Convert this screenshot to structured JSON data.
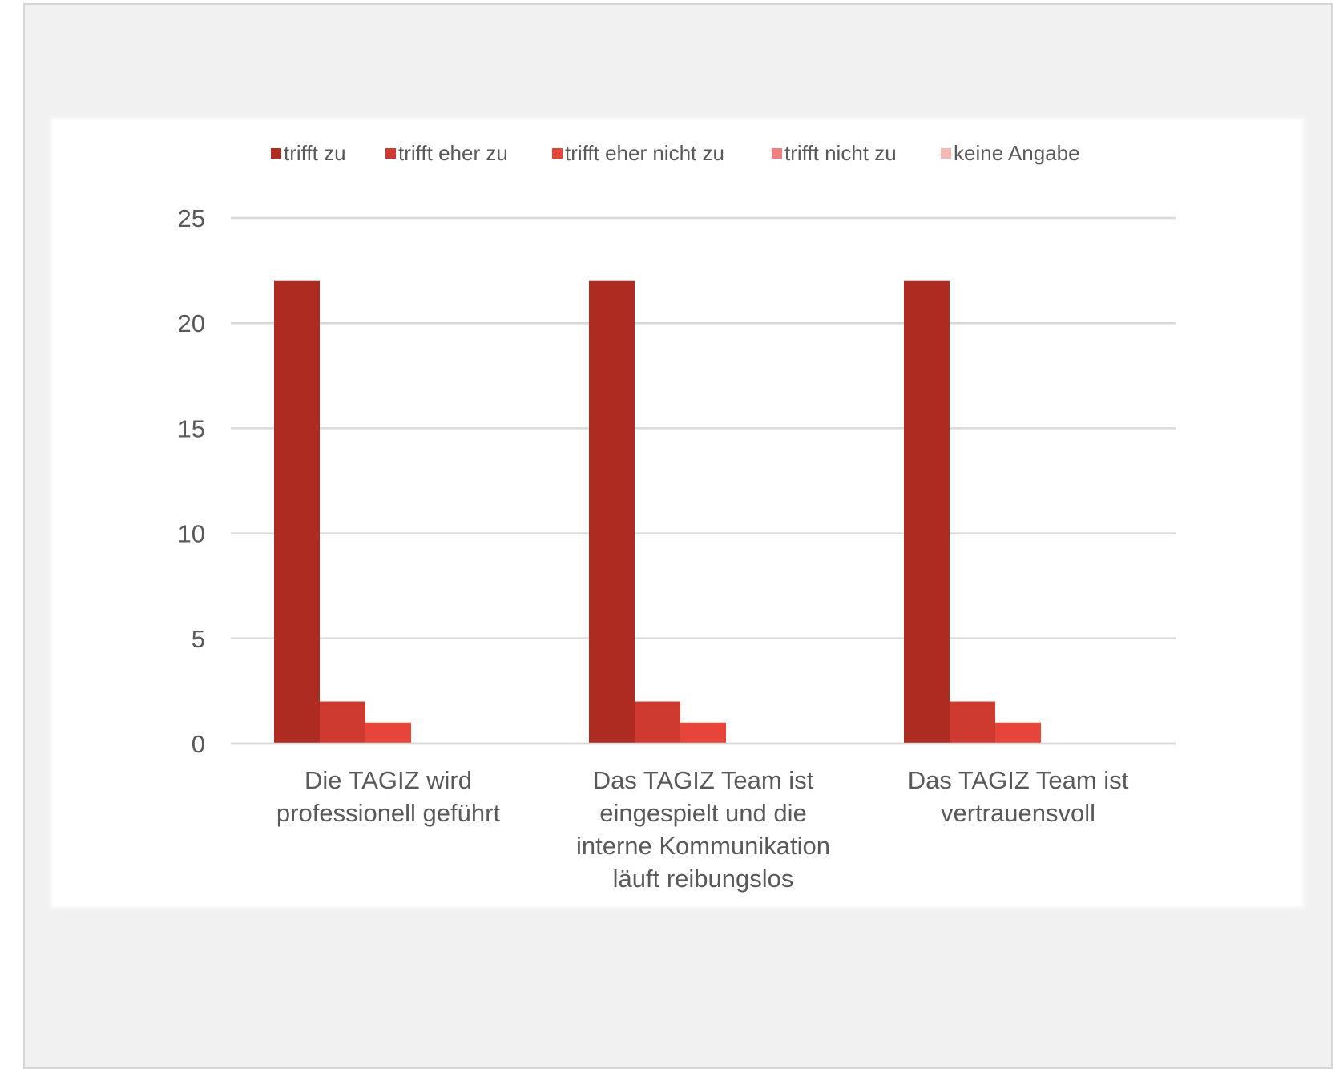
{
  "chart_data": {
    "type": "bar",
    "title": "",
    "xlabel": "",
    "ylabel": "",
    "ylim": [
      0,
      25
    ],
    "yticks": [
      0,
      5,
      10,
      15,
      20,
      25
    ],
    "grid": true,
    "legend_position": "top",
    "categories": [
      [
        "Die TAGIZ wird",
        "professionell geführt"
      ],
      [
        "Das TAGIZ Team ist",
        "eingespielt und die",
        "interne Kommunikation",
        "läuft reibungslos"
      ],
      [
        "Das TAGIZ Team ist",
        "vertrauensvoll"
      ]
    ],
    "series": [
      {
        "name": "trifft zu",
        "color": "#ae2b22",
        "values": [
          22,
          22,
          22
        ]
      },
      {
        "name": "trifft eher zu",
        "color": "#cf3a30",
        "values": [
          2,
          2,
          2
        ]
      },
      {
        "name": "trifft eher nicht zu",
        "color": "#e8453a",
        "values": [
          1,
          1,
          1
        ]
      },
      {
        "name": "trifft nicht zu",
        "color": "#f08080",
        "values": [
          0,
          0,
          0
        ]
      },
      {
        "name": "keine Angabe",
        "color": "#f6b8b4",
        "values": [
          0,
          0,
          0
        ]
      }
    ]
  }
}
